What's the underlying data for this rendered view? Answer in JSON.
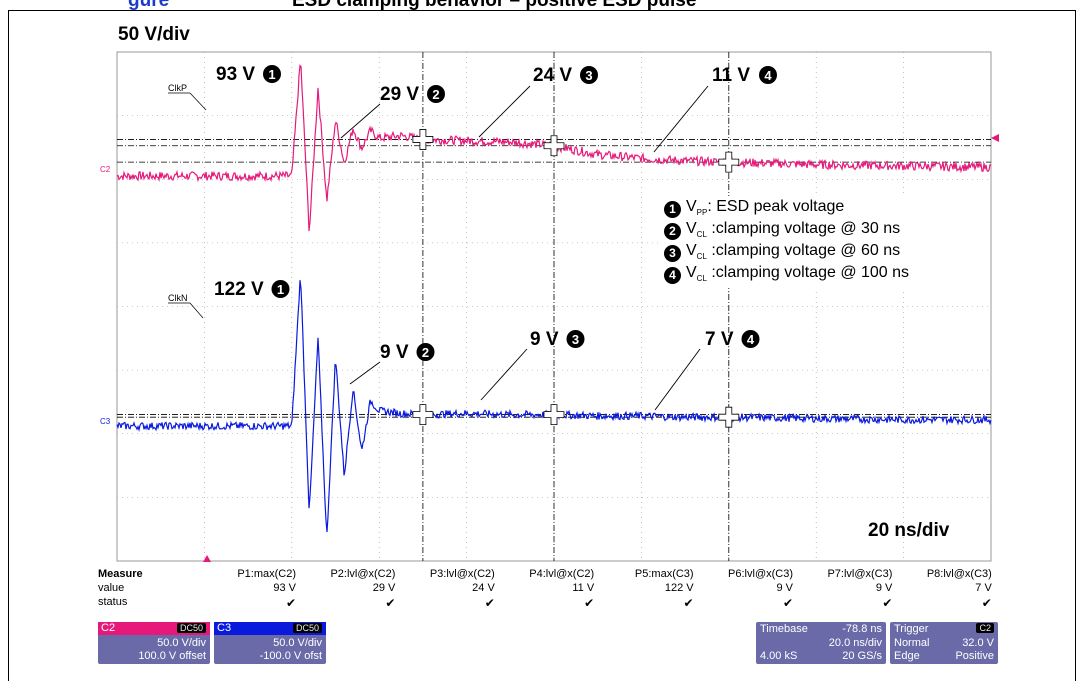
{
  "top_caption": {
    "part1": "gure",
    "part2": "ESD clamping behavior – positive ESD pulse"
  },
  "scale_label": "50 V/div",
  "timebase_label": "20 ns/div",
  "colors": {
    "c2": "#e6197a",
    "c3": "#0a1adc",
    "panel": "#6a6aa8"
  },
  "chart_data": {
    "type": "line",
    "x_unit": "ns",
    "y_unit": "V",
    "xlim": [
      -40,
      160
    ],
    "grid": true,
    "series": [
      {
        "name": "ClkP",
        "channel": "C2",
        "x": [
          0,
          2,
          4,
          6,
          8,
          10,
          12,
          14,
          16,
          18,
          20,
          25,
          30,
          40,
          50,
          60,
          70,
          80,
          90,
          100,
          120,
          140,
          160
        ],
        "y": [
          0,
          93,
          -45,
          70,
          -20,
          45,
          10,
          38,
          22,
          36,
          30,
          32,
          29,
          28,
          27,
          24,
          17,
          14,
          12,
          11,
          9,
          8,
          7
        ]
      },
      {
        "name": "ClkN",
        "channel": "C3",
        "x": [
          0,
          2,
          4,
          6,
          8,
          10,
          12,
          14,
          16,
          18,
          20,
          25,
          30,
          40,
          50,
          60,
          70,
          80,
          90,
          100,
          120,
          140,
          160
        ],
        "y": [
          0,
          122,
          -70,
          70,
          -90,
          55,
          -40,
          30,
          -20,
          20,
          12,
          10,
          9,
          10,
          9,
          9,
          8,
          8,
          7,
          7,
          6,
          5,
          5
        ]
      }
    ],
    "annotations": [
      {
        "text": "93 V",
        "marker": "1"
      },
      {
        "text": "29 V",
        "marker": "2"
      },
      {
        "text": "24 V",
        "marker": "3"
      },
      {
        "text": "11 V",
        "marker": "4"
      },
      {
        "text": "122 V",
        "marker": "1"
      },
      {
        "text": "9 V",
        "marker": "2"
      },
      {
        "text": "9 V",
        "marker": "3"
      },
      {
        "text": "7 V",
        "marker": "4"
      }
    ],
    "trace_labels": {
      "c2_name": "ClkP",
      "c3_name": "ClkN",
      "c2_ch": "C2",
      "c3_ch": "C3"
    }
  },
  "legend": [
    {
      "num": "1",
      "sym": "V",
      "sub": "PP",
      "text": ": ESD peak voltage"
    },
    {
      "num": "2",
      "sym": "V",
      "sub": "CL",
      "text": " :clamping voltage  @ 30 ns"
    },
    {
      "num": "3",
      "sym": "V",
      "sub": "CL",
      "text": " :clamping voltage  @ 60 ns"
    },
    {
      "num": "4",
      "sym": "V",
      "sub": "CL",
      "text": " :clamping voltage  @ 100 ns"
    }
  ],
  "measure": {
    "header": "Measure",
    "row_value": "value",
    "row_status": "status",
    "columns": [
      {
        "name": "P1:max(C2)",
        "value": "93 V"
      },
      {
        "name": "P2:lvl@x(C2)",
        "value": "29 V"
      },
      {
        "name": "P3:lvl@x(C2)",
        "value": "24 V"
      },
      {
        "name": "P4:lvl@x(C2)",
        "value": "11 V"
      },
      {
        "name": "P5:max(C3)",
        "value": "122 V"
      },
      {
        "name": "P6:lvl@x(C3)",
        "value": "9 V"
      },
      {
        "name": "P7:lvl@x(C3)",
        "value": "9 V"
      },
      {
        "name": "P8:lvl@x(C3)",
        "value": "7 V"
      }
    ],
    "status_glyph": "✔"
  },
  "panels": {
    "c2": {
      "title": "C2",
      "coupling": "DC50",
      "vdiv": "50.0 V/div",
      "offset": "100.0 V offset"
    },
    "c3": {
      "title": "C3",
      "coupling": "DC50",
      "vdiv": "50.0 V/div",
      "offset": "-100.0 V ofst"
    },
    "timebase": {
      "title": "Timebase",
      "delay": "-78.8 ns",
      "tdiv": "20.0 ns/div",
      "samples": "4.00 kS",
      "rate": "20 GS/s"
    },
    "trigger": {
      "title": "Trigger",
      "source": "C2",
      "mode": "Normal",
      "level": "32.0 V",
      "type": "Edge",
      "slope": "Positive"
    }
  }
}
